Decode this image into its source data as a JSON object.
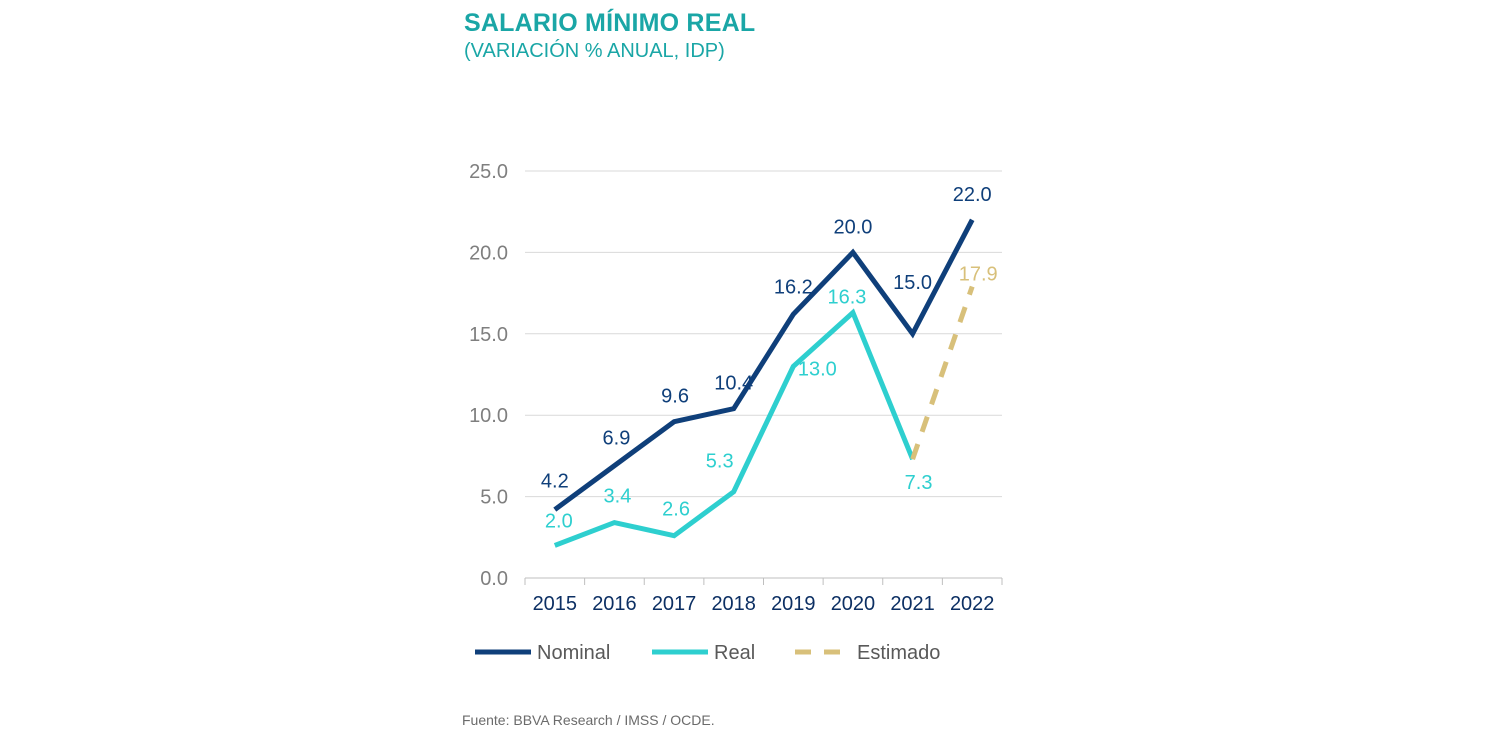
{
  "header": {
    "title": "SALARIO MÍNIMO REAL",
    "subtitle": "(VARIACIÓN % ANUAL, IDP)"
  },
  "footer": {
    "source": "Fuente: BBVA Research / IMSS / OCDE."
  },
  "chart_data": {
    "type": "line",
    "categories": [
      "2015",
      "2016",
      "2017",
      "2018",
      "2019",
      "2020",
      "2021",
      "2022"
    ],
    "y_ticks": [
      "0.0",
      "5.0",
      "10.0",
      "15.0",
      "20.0",
      "25.0"
    ],
    "ylim": [
      0,
      25
    ],
    "grid": true,
    "legend_position": "bottom",
    "series": [
      {
        "name": "Nominal",
        "color": "#0f3f7a",
        "style": "solid",
        "values": [
          4.2,
          6.9,
          9.6,
          10.4,
          16.2,
          20.0,
          15.0,
          22.0
        ],
        "labels": [
          "4.2",
          "6.9",
          "9.6",
          "10.4",
          "16.2",
          "20.0",
          "15.0",
          "22.0"
        ]
      },
      {
        "name": "Real",
        "color": "#2ecfcf",
        "style": "solid",
        "values": [
          2.0,
          3.4,
          2.6,
          5.3,
          13.0,
          16.3,
          7.3,
          null
        ],
        "labels": [
          "2.0",
          "3.4",
          "2.6",
          "5.3",
          "13.0",
          "16.3",
          "7.3",
          ""
        ]
      },
      {
        "name": "Estimado",
        "color": "#d8c07a",
        "style": "dashed",
        "values": [
          null,
          null,
          null,
          null,
          null,
          null,
          7.3,
          17.9
        ],
        "labels": [
          "",
          "",
          "",
          "",
          "",
          "",
          "",
          "17.9"
        ]
      }
    ]
  }
}
